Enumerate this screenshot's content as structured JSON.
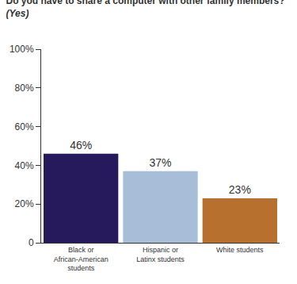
{
  "chart_data": {
    "type": "bar",
    "title": "Do you have to share a computer with other family members?",
    "subtitle": "(Yes)",
    "categories": [
      "Black or African-American students",
      "Hispanic or Latinx students",
      "White students"
    ],
    "values": [
      46,
      37,
      23
    ],
    "value_labels": [
      "46%",
      "37%",
      "23%"
    ],
    "colors": [
      "#261a5c",
      "#a8bdd8",
      "#b8702e"
    ],
    "data_labels": true,
    "ylim": [
      0,
      100
    ],
    "yticks": [
      0,
      {
        "value": 20,
        "label": "20%"
      },
      {
        "value": 40,
        "label": "40%"
      },
      {
        "value": 60,
        "label": "60%"
      },
      {
        "value": 80,
        "label": "80%"
      },
      {
        "value": 100,
        "label": "100%"
      }
    ],
    "grid": false
  }
}
